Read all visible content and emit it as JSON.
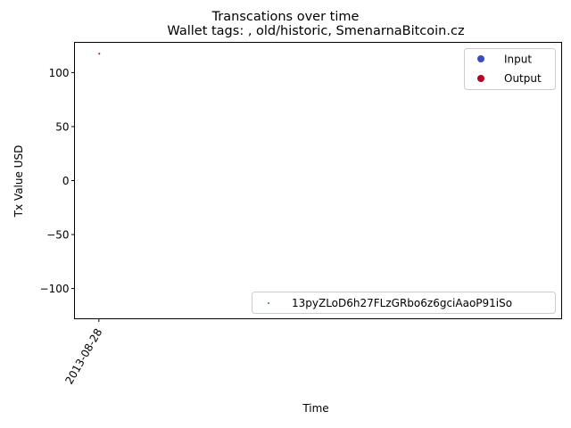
{
  "chart_data": {
    "type": "scatter",
    "suptitle": "Transcations over time",
    "title": "Wallet tags: , old/historic, SmenarnaBitcoin.cz",
    "xlabel": "Time",
    "ylabel": "Tx Value USD",
    "x_tick_labels": [
      "2013-08-28"
    ],
    "y_ticks": [
      100,
      50,
      0,
      -50,
      -100
    ],
    "y_tick_labels": [
      "100",
      "50",
      "0",
      "−50",
      "−100"
    ],
    "ylim": [
      -128,
      128
    ],
    "xlim": [
      "2013-08-27",
      "2013-09-16"
    ],
    "grid": false,
    "points": [
      {
        "x": "2013-08-28",
        "y": 117.5,
        "kind": "Output"
      }
    ],
    "legend_type": {
      "placement": "top-right",
      "entries": [
        {
          "label": "Input",
          "color": "#3b4cc0"
        },
        {
          "label": "Output",
          "color": "#b40426"
        }
      ]
    },
    "legend_address": {
      "placement": "bottom-right",
      "entries": [
        {
          "label": "13pyZLoD6h27FLzGRbo6z6gciAaoP91iSo",
          "color": "#1f77b4"
        }
      ]
    }
  }
}
